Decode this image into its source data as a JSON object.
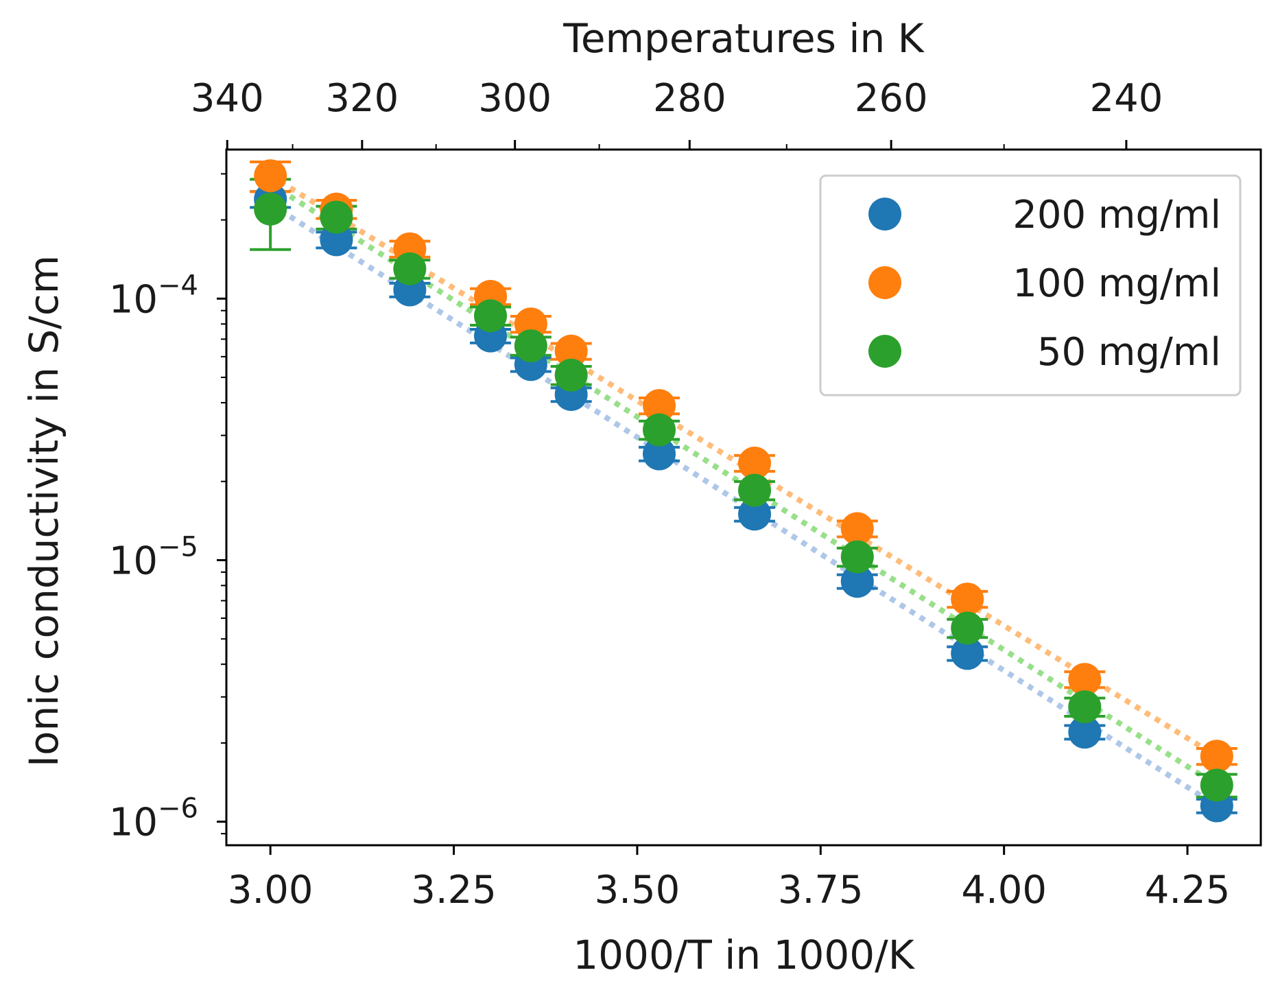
{
  "chart_data": {
    "type": "scatter",
    "title": "",
    "xlabel": "1000/T in 1000/K",
    "ylabel": "Ionic conductivity in S/cm",
    "top_xlabel": "Temperatures in K",
    "xlim": [
      2.94,
      4.35
    ],
    "ylim_log10": [
      -6.09,
      -3.43
    ],
    "yscale": "log",
    "x_ticks": [
      3.0,
      3.25,
      3.5,
      3.75,
      4.0,
      4.25
    ],
    "x_tick_labels": [
      "3.00",
      "3.25",
      "3.50",
      "3.75",
      "4.00",
      "4.25"
    ],
    "y_ticks_log10": [
      -6,
      -5,
      -4
    ],
    "y_tick_labels": [
      {
        "base": "10",
        "exp": "−6"
      },
      {
        "base": "10",
        "exp": "−5"
      },
      {
        "base": "10",
        "exp": "−4"
      }
    ],
    "top_x_ticks": [
      340,
      320,
      300,
      280,
      260,
      240
    ],
    "top_x_tick_labels": [
      "340",
      "320",
      "300",
      "280",
      "260",
      "240"
    ],
    "legend_position": "top-right",
    "x": [
      3.0,
      3.09,
      3.19,
      3.3,
      3.355,
      3.41,
      3.53,
      3.66,
      3.8,
      3.95,
      4.11,
      4.29
    ],
    "series": [
      {
        "name": "200 mg/ml",
        "color": "#1f77b4",
        "fit_color": "#aec7e8",
        "values": [
          0.00024,
          0.000168,
          0.000108,
          7.2e-05,
          5.6e-05,
          4.3e-05,
          2.55e-05,
          1.5e-05,
          8.3e-06,
          4.4e-06,
          2.2e-06,
          1.15e-06
        ],
        "err_rel": [
          0.07,
          0.07,
          0.06,
          0.06,
          0.06,
          0.06,
          0.06,
          0.06,
          0.06,
          0.06,
          0.06,
          0.06
        ],
        "fit": [
          0.00023,
          1.15e-06
        ]
      },
      {
        "name": "100 mg/ml",
        "color": "#ff7f0e",
        "fit_color": "#ffbb78",
        "values": [
          0.000295,
          0.00022,
          0.000155,
          0.000102,
          8e-05,
          6.3e-05,
          3.9e-05,
          2.35e-05,
          1.32e-05,
          7.1e-06,
          3.5e-06,
          1.78e-06
        ],
        "err_rel": [
          0.13,
          0.08,
          0.07,
          0.07,
          0.07,
          0.07,
          0.07,
          0.07,
          0.07,
          0.07,
          0.07,
          0.07
        ],
        "fit": [
          0.000295,
          1.78e-06
        ]
      },
      {
        "name": "50 mg/ml",
        "color": "#2ca02c",
        "fit_color": "#98df8a",
        "values": [
          0.00022,
          0.000205,
          0.00013,
          8.6e-05,
          6.6e-05,
          5.1e-05,
          3.15e-05,
          1.85e-05,
          1.03e-05,
          5.5e-06,
          2.75e-06,
          1.38e-06
        ],
        "err_rel": [
          0.3,
          0.1,
          0.08,
          0.08,
          0.08,
          0.08,
          0.08,
          0.08,
          0.08,
          0.08,
          0.08,
          0.1
        ],
        "fit": [
          0.000275,
          1.38e-06
        ]
      }
    ]
  }
}
